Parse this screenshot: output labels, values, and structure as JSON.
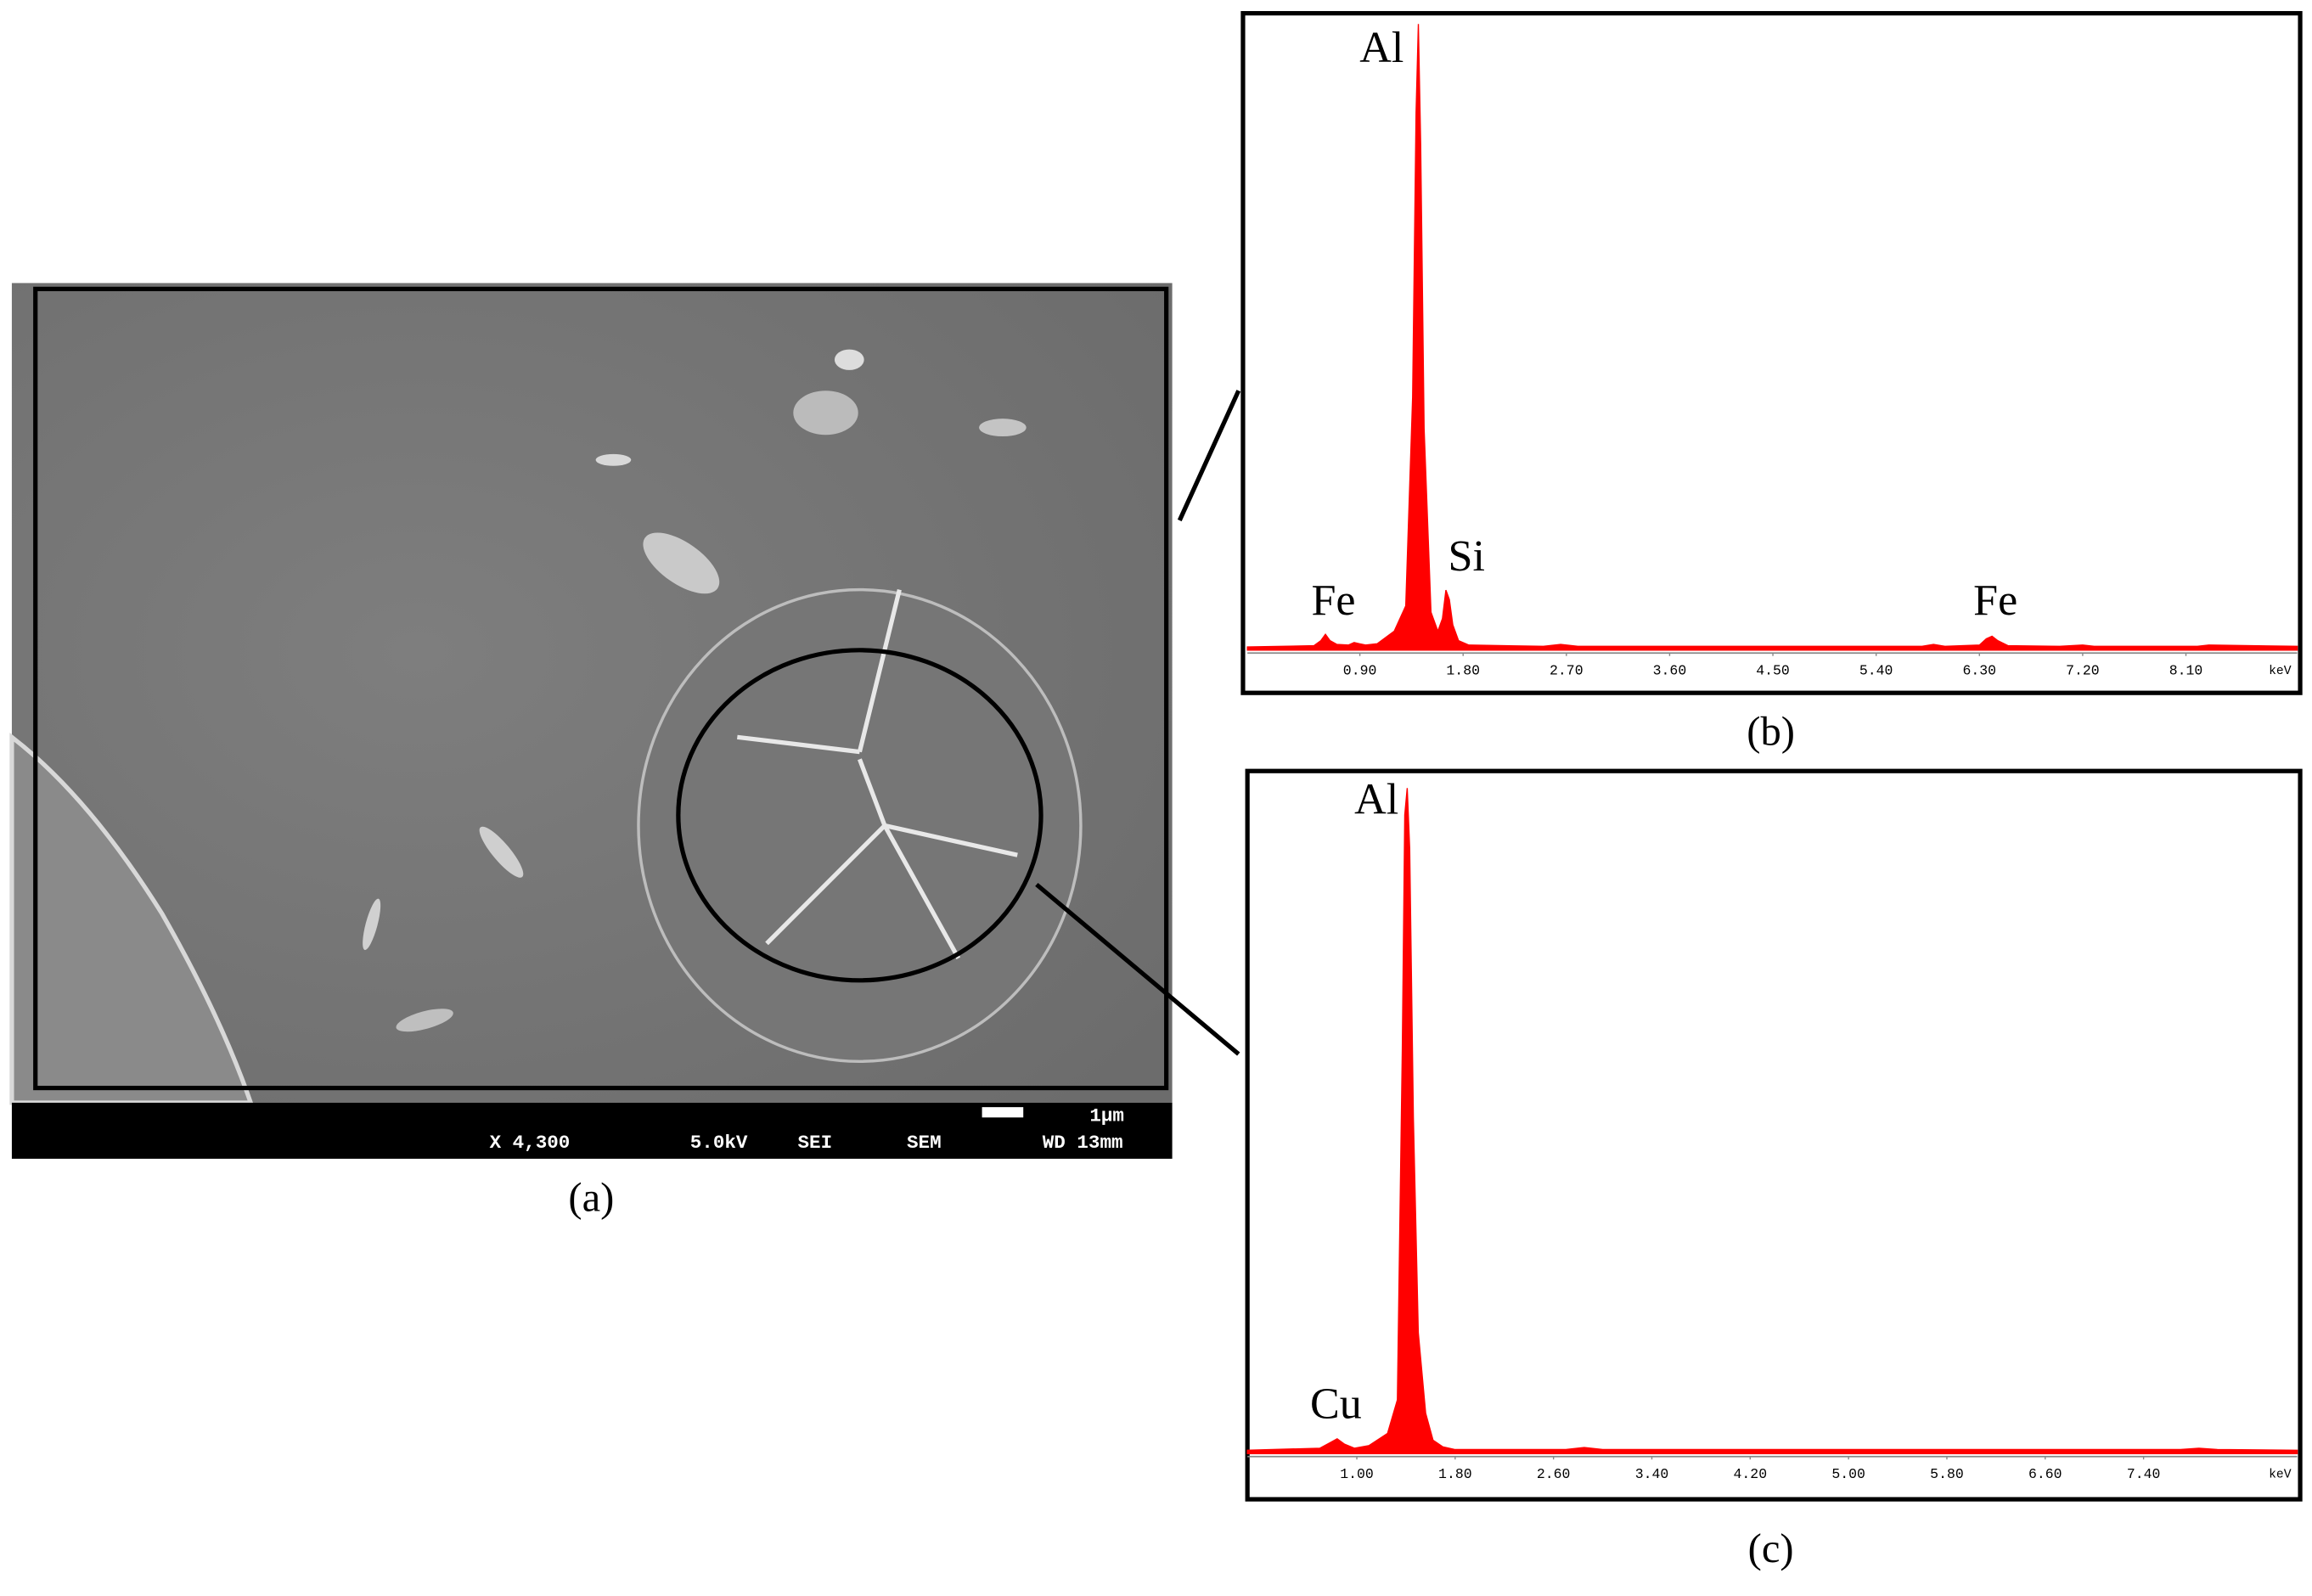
{
  "sem_image": {
    "magnification": "X 4,300",
    "voltage": "5.0kV",
    "detector": "SEI",
    "mode": "SEM",
    "working_distance": "WD 13mm",
    "scale_bar": "1μm",
    "caption": "(a)"
  },
  "chart_data": [
    {
      "type": "area",
      "caption": "(b)",
      "x_label": "keV",
      "color": "#ff0000",
      "xlim": [
        -0.08,
        9.07
      ],
      "ylim": [
        0,
        100
      ],
      "xticks": [
        {
          "value": 0.9,
          "label": "0.90"
        },
        {
          "value": 1.8,
          "label": "1.80"
        },
        {
          "value": 2.7,
          "label": "2.70"
        },
        {
          "value": 3.6,
          "label": "3.60"
        },
        {
          "value": 4.5,
          "label": "4.50"
        },
        {
          "value": 5.4,
          "label": "5.40"
        },
        {
          "value": 6.3,
          "label": "6.30"
        },
        {
          "value": 7.2,
          "label": "7.20"
        },
        {
          "value": 8.1,
          "label": "8.10"
        }
      ],
      "x": [
        -0.08,
        0.5,
        0.56,
        0.6,
        0.64,
        0.7,
        0.8,
        0.85,
        0.9,
        0.95,
        1.05,
        1.2,
        1.3,
        1.36,
        1.39,
        1.41,
        1.43,
        1.46,
        1.52,
        1.58,
        1.62,
        1.65,
        1.68,
        1.71,
        1.76,
        1.85,
        2.5,
        2.65,
        2.8,
        5.8,
        5.9,
        6.0,
        6.3,
        6.36,
        6.41,
        6.46,
        6.55,
        7.0,
        7.2,
        7.3,
        8.2,
        8.3,
        9.07
      ],
      "values": [
        0.5,
        0.7,
        1.5,
        2.5,
        1.5,
        0.9,
        0.8,
        1.2,
        1.0,
        0.8,
        1.0,
        3,
        7,
        40,
        85,
        99,
        80,
        35,
        6,
        3,
        5,
        9.5,
        8,
        4,
        1.5,
        0.8,
        0.6,
        0.9,
        0.6,
        0.6,
        0.9,
        0.6,
        0.8,
        1.8,
        2.2,
        1.5,
        0.7,
        0.6,
        0.8,
        0.6,
        0.6,
        0.8,
        0.6
      ],
      "annotations": [
        {
          "text": "Al",
          "x": 1.09,
          "y": 94.6
        },
        {
          "text": "Si",
          "x": 1.83,
          "y": 14.2
        },
        {
          "text": "Fe",
          "x": 0.67,
          "y": 7.2
        },
        {
          "text": "Fe",
          "x": 6.44,
          "y": 7.2
        }
      ]
    },
    {
      "type": "area",
      "caption": "(c)",
      "x_label": "keV",
      "color": "#ff0000",
      "xlim": [
        0.11,
        8.65
      ],
      "ylim": [
        0,
        100
      ],
      "xticks": [
        {
          "value": 1.0,
          "label": "1.00"
        },
        {
          "value": 1.8,
          "label": "1.80"
        },
        {
          "value": 2.6,
          "label": "2.60"
        },
        {
          "value": 3.4,
          "label": "3.40"
        },
        {
          "value": 4.2,
          "label": "4.20"
        },
        {
          "value": 5.0,
          "label": "5.00"
        },
        {
          "value": 5.8,
          "label": "5.80"
        },
        {
          "value": 6.6,
          "label": "6.60"
        },
        {
          "value": 7.4,
          "label": "7.40"
        }
      ],
      "x": [
        0.11,
        0.7,
        0.78,
        0.84,
        0.9,
        0.98,
        1.1,
        1.25,
        1.33,
        1.37,
        1.39,
        1.41,
        1.43,
        1.46,
        1.5,
        1.56,
        1.62,
        1.7,
        1.8,
        2.7,
        2.85,
        3.0,
        7.7,
        7.85,
        8.0,
        8.65
      ],
      "values": [
        0.5,
        0.8,
        1.6,
        2.2,
        1.4,
        0.8,
        1.2,
        3,
        8,
        60,
        95,
        99,
        90,
        50,
        18,
        6,
        2,
        1,
        0.6,
        0.6,
        0.9,
        0.6,
        0.6,
        0.8,
        0.6,
        0.5
      ],
      "annotations": [
        {
          "text": "Al",
          "x": 1.16,
          "y": 96.7
        },
        {
          "text": "Cu",
          "x": 0.83,
          "y": 6.8
        }
      ]
    }
  ]
}
